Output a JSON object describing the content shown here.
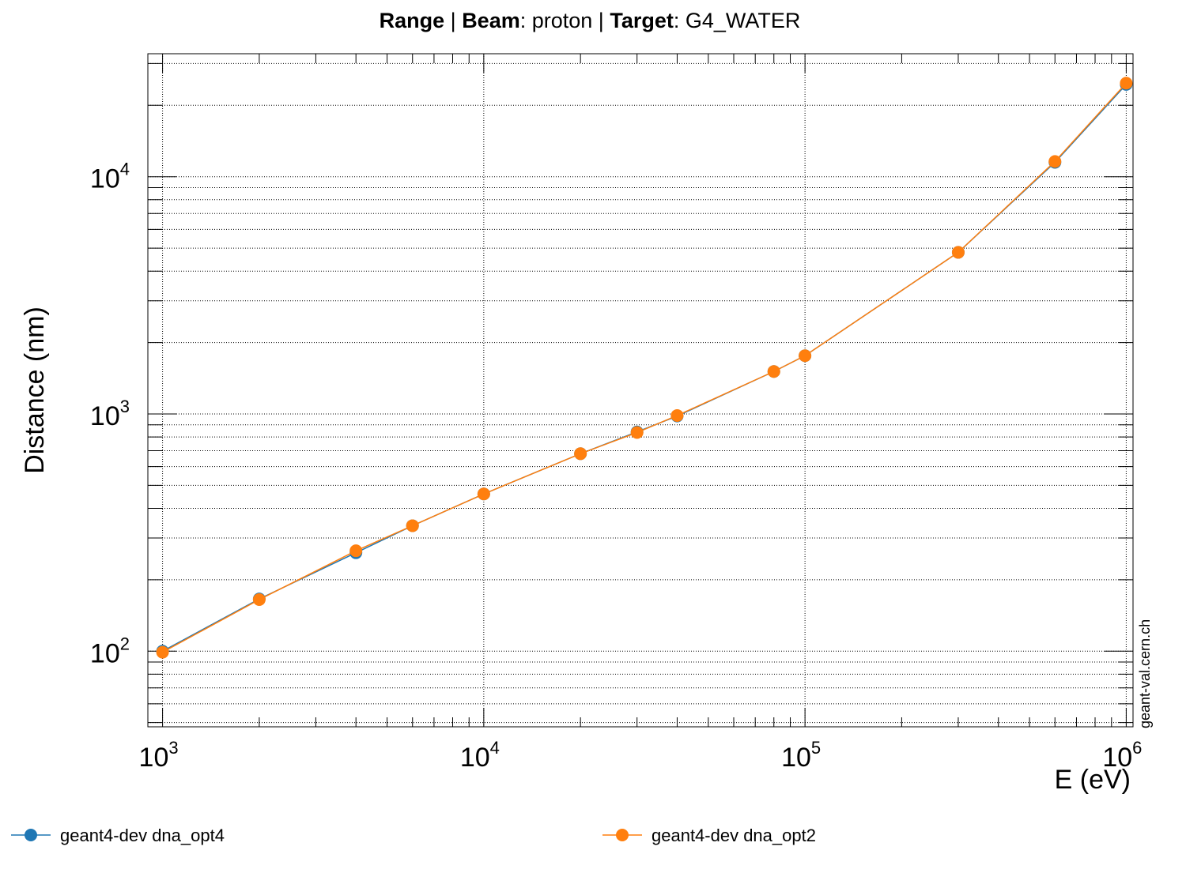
{
  "title": {
    "part1_bold": "Range",
    "sep1": " | ",
    "part2_bold": "Beam",
    "part2_value": ": proton",
    "sep2": " | ",
    "part3_bold": "Target",
    "part3_value": ": G4_WATER"
  },
  "watermark": "geant-val.cern.ch",
  "chart_data": {
    "type": "line",
    "title": "Range | Beam: proton | Target: G4_WATER",
    "xlabel": "E (eV)",
    "ylabel": "Distance (nm)",
    "xscale": "log",
    "yscale": "log",
    "xlim": [
      900,
      1050000
    ],
    "ylim": [
      48,
      33000
    ],
    "grid": true,
    "legend_position": "bottom",
    "x_ticks": [
      {
        "base": "10",
        "exp": "3",
        "value": 1000
      },
      {
        "base": "10",
        "exp": "4",
        "value": 10000
      },
      {
        "base": "10",
        "exp": "5",
        "value": 100000
      },
      {
        "base": "10",
        "exp": "6",
        "value": 1000000
      }
    ],
    "y_ticks": [
      {
        "base": "10",
        "exp": "2",
        "value": 100
      },
      {
        "base": "10",
        "exp": "3",
        "value": 1000
      },
      {
        "base": "10",
        "exp": "4",
        "value": 10000
      }
    ],
    "series": [
      {
        "name": "geant4-dev dna_opt4",
        "color": "#1f77b4",
        "x": [
          1000,
          2000,
          4000,
          6000,
          10000,
          20000,
          30000,
          40000,
          80000,
          100000,
          300000,
          600000,
          1000000
        ],
        "y": [
          100,
          166,
          260,
          338,
          460,
          680,
          840,
          980,
          1510,
          1760,
          4800,
          11500,
          24500
        ]
      },
      {
        "name": "geant4-dev dna_opt2",
        "color": "#ff7f0e",
        "x": [
          1000,
          2000,
          4000,
          6000,
          10000,
          20000,
          30000,
          40000,
          80000,
          100000,
          300000,
          600000,
          1000000
        ],
        "y": [
          99,
          165,
          265,
          338,
          460,
          680,
          835,
          985,
          1510,
          1760,
          4800,
          11600,
          24800
        ]
      }
    ]
  }
}
